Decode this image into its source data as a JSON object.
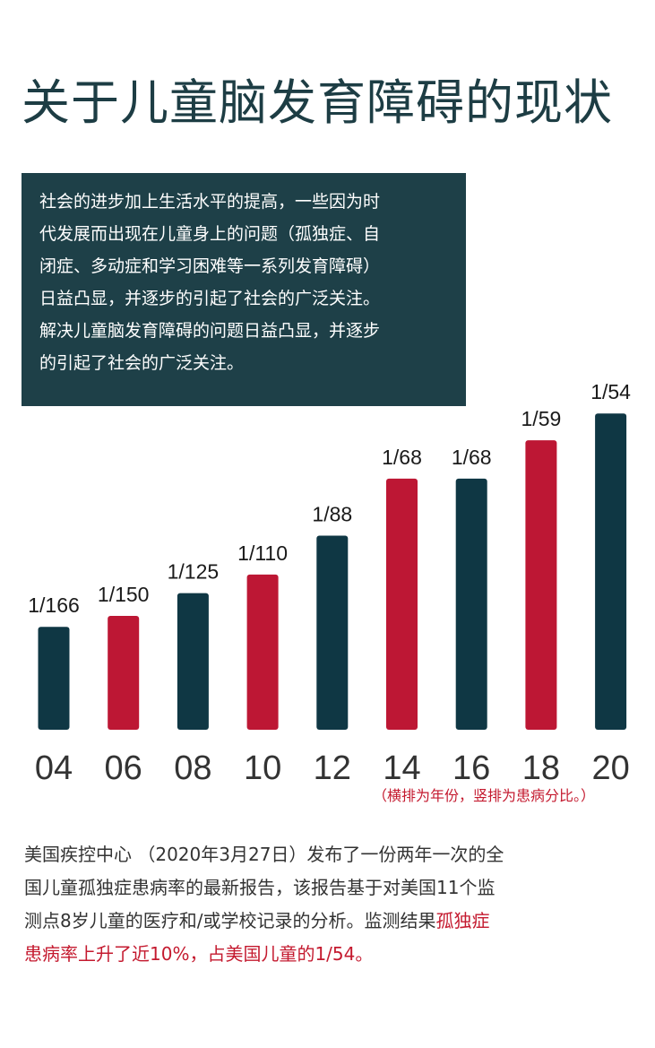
{
  "title": "关于儿童脑发育障碍的现状",
  "intro": {
    "lines": [
      "社会的进步加上生活水平的提高，一些因为时",
      "代发展而出现在儿童身上的问题（孤独症、自",
      "闭症、多动症和学习困难等一系列发育障碍）",
      "日益凸显，并逐步的引起了社会的广泛关注。",
      "解决儿童脑发育障碍的问题日益凸显，并逐步",
      "的引起了社会的广泛关注。"
    ]
  },
  "colors": {
    "dark": "#0f3744",
    "red": "#bd1734"
  },
  "chart_data": {
    "type": "bar",
    "categories": [
      "04",
      "06",
      "08",
      "10",
      "12",
      "14",
      "16",
      "18",
      "20"
    ],
    "values": [
      166,
      150,
      125,
      110,
      88,
      68,
      68,
      59,
      54
    ],
    "value_labels": [
      "1/166",
      "1/150",
      "1/125",
      "1/110",
      "1/88",
      "1/68",
      "1/68",
      "1/59",
      "1/54"
    ],
    "bar_colors": [
      "dark",
      "red",
      "dark",
      "red",
      "dark",
      "red",
      "dark",
      "red",
      "dark"
    ],
    "title": "",
    "xlabel": "",
    "ylabel": ""
  },
  "note": "（横排为年份，竖排为患病分比。）",
  "paragraph": {
    "line1": "美国疾控中心 （2020年3月27日）发布了一份两年一次的全",
    "line2": "国儿童孤独症患病率的最新报告，该报告基于对美国11个监",
    "line3": "测点8岁儿童的医疗和/或学校记录的分析。监测结果",
    "line3_highlight": "孤独症",
    "line4_highlight": "患病率上升了近10%，占美国儿童的1/54。"
  }
}
